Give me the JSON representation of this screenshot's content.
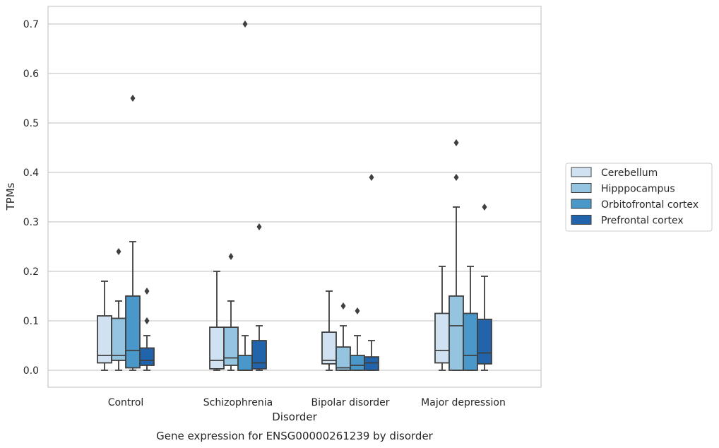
{
  "chart_data": {
    "type": "box",
    "xlabel": "Disorder",
    "ylabel": "TPMs",
    "caption": "Gene expression for ENSG00000261239 by disorder",
    "ylim": [
      -0.034,
      0.736
    ],
    "yticks": [
      "0.0",
      "0.1",
      "0.2",
      "0.3",
      "0.4",
      "0.5",
      "0.6",
      "0.7"
    ],
    "grid": true,
    "legend_position": "right",
    "categories": [
      "Control",
      "Schizophrenia",
      "Bipolar disorder",
      "Major depression"
    ],
    "series": [
      {
        "name": "Cerebellum",
        "color": "#d0e1f2",
        "boxes": [
          {
            "whislo": 0.0,
            "q1": 0.015,
            "med": 0.03,
            "q3": 0.11,
            "whishi": 0.18,
            "fliers": []
          },
          {
            "whislo": 0.0,
            "q1": 0.003,
            "med": 0.02,
            "q3": 0.087,
            "whishi": 0.2,
            "fliers": []
          },
          {
            "whislo": 0.0,
            "q1": 0.013,
            "med": 0.02,
            "q3": 0.077,
            "whishi": 0.16,
            "fliers": []
          },
          {
            "whislo": 0.0,
            "q1": 0.015,
            "med": 0.04,
            "q3": 0.115,
            "whishi": 0.21,
            "fliers": []
          }
        ]
      },
      {
        "name": "Hipppocampus",
        "color": "#94c4df",
        "boxes": [
          {
            "whislo": 0.0,
            "q1": 0.02,
            "med": 0.03,
            "q3": 0.105,
            "whishi": 0.14,
            "fliers": [
              0.24
            ]
          },
          {
            "whislo": 0.0,
            "q1": 0.01,
            "med": 0.025,
            "q3": 0.087,
            "whishi": 0.14,
            "fliers": [
              0.23
            ]
          },
          {
            "whislo": 0.0,
            "q1": 0.0,
            "med": 0.005,
            "q3": 0.047,
            "whishi": 0.09,
            "fliers": [
              0.13
            ]
          },
          {
            "whislo": 0.0,
            "q1": 0.0,
            "med": 0.09,
            "q3": 0.15,
            "whishi": 0.33,
            "fliers": [
              0.39,
              0.46
            ]
          }
        ]
      },
      {
        "name": "Orbitofrontal cortex",
        "color": "#4a98c9",
        "boxes": [
          {
            "whislo": 0.0,
            "q1": 0.005,
            "med": 0.04,
            "q3": 0.15,
            "whishi": 0.26,
            "fliers": [
              0.55
            ]
          },
          {
            "whislo": 0.0,
            "q1": 0.0,
            "med": 0.0,
            "q3": 0.03,
            "whishi": 0.07,
            "fliers": [
              0.7
            ]
          },
          {
            "whislo": 0.0,
            "q1": 0.0,
            "med": 0.01,
            "q3": 0.03,
            "whishi": 0.07,
            "fliers": [
              0.12
            ]
          },
          {
            "whislo": 0.0,
            "q1": 0.0,
            "med": 0.03,
            "q3": 0.115,
            "whishi": 0.21,
            "fliers": []
          }
        ]
      },
      {
        "name": "Prefrontal cortex",
        "color": "#2264ab",
        "boxes": [
          {
            "whislo": 0.0,
            "q1": 0.01,
            "med": 0.02,
            "q3": 0.045,
            "whishi": 0.07,
            "fliers": [
              0.1,
              0.16
            ]
          },
          {
            "whislo": 0.0,
            "q1": 0.003,
            "med": 0.015,
            "q3": 0.06,
            "whishi": 0.09,
            "fliers": [
              0.29
            ]
          },
          {
            "whislo": 0.0,
            "q1": 0.0,
            "med": 0.015,
            "q3": 0.027,
            "whishi": 0.06,
            "fliers": [
              0.39
            ]
          },
          {
            "whislo": 0.0,
            "q1": 0.013,
            "med": 0.035,
            "q3": 0.103,
            "whishi": 0.19,
            "fliers": [
              0.33
            ]
          }
        ]
      }
    ]
  }
}
